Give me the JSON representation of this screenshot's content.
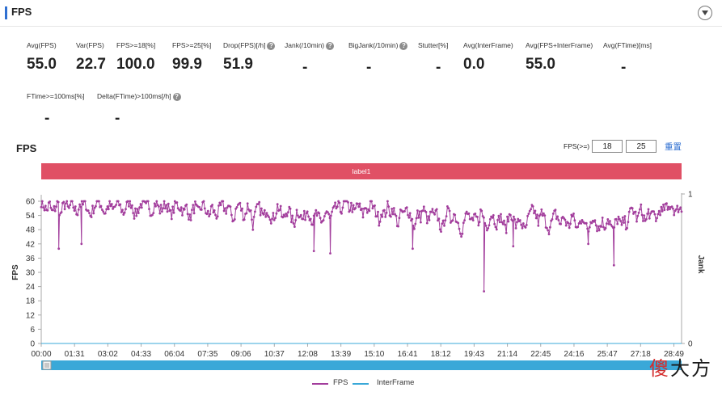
{
  "panel": {
    "title": "FPS"
  },
  "metrics_row1": [
    {
      "label": "Avg(FPS)",
      "value": "55.0",
      "help": false
    },
    {
      "label": "Var(FPS)",
      "value": "22.7",
      "help": false
    },
    {
      "label": "FPS>=18[%]",
      "value": "100.0",
      "help": false
    },
    {
      "label": "FPS>=25[%]",
      "value": "99.9",
      "help": false
    },
    {
      "label": "Drop(FPS)[/h]",
      "value": "51.9",
      "help": true
    },
    {
      "label": "Jank(/10min)",
      "value": "-",
      "help": true
    },
    {
      "label": "BigJank(/10min)",
      "value": "-",
      "help": true
    },
    {
      "label": "Stutter[%]",
      "value": "-",
      "help": false
    },
    {
      "label": "Avg(InterFrame)",
      "value": "0.0",
      "help": false
    },
    {
      "label": "Avg(FPS+InterFrame)",
      "value": "55.0",
      "help": false
    },
    {
      "label": "Avg(FTime)[ms]",
      "value": "-",
      "help": false
    }
  ],
  "metrics_row2": [
    {
      "label": "FTime>=100ms[%]",
      "value": "-",
      "help": false
    },
    {
      "label": "Delta(FTime)>100ms[/h]",
      "value": "-",
      "help": true
    }
  ],
  "chart_controls": {
    "threshold_label": "FPS(>=)",
    "threshold_low": "18",
    "threshold_high": "25",
    "reset_label": "重置"
  },
  "label_bar": "label1",
  "legend": [
    {
      "name": "FPS",
      "color": "#a23d9c"
    },
    {
      "name": "InterFrame",
      "color": "#3aa8d8"
    }
  ],
  "watermark": {
    "first": "傻",
    "rest": "大方"
  },
  "chart_data": {
    "type": "line",
    "title": "FPS",
    "xlabel": "",
    "ylabel": "FPS",
    "ylabel_right": "Jank",
    "x_ticks": [
      "00:00",
      "01:31",
      "03:02",
      "04:33",
      "06:04",
      "07:35",
      "09:06",
      "10:37",
      "12:08",
      "13:39",
      "15:10",
      "16:41",
      "18:12",
      "19:43",
      "21:14",
      "22:45",
      "24:16",
      "25:47",
      "27:18",
      "28:49"
    ],
    "y_ticks": [
      0,
      6,
      12,
      18,
      24,
      30,
      36,
      42,
      48,
      54,
      60
    ],
    "y2_ticks": [
      0,
      1
    ],
    "ylim": [
      0,
      60
    ],
    "y2lim": [
      0,
      1
    ],
    "duration_seconds": 1750,
    "grid": false,
    "legend_position": "bottom",
    "series": [
      {
        "name": "FPS",
        "color": "#a23d9c",
        "values": [
          60,
          58,
          56,
          59,
          55,
          57,
          60,
          54,
          58,
          59,
          56,
          60,
          57,
          55,
          59,
          58,
          60,
          56,
          54,
          57,
          59,
          60,
          58,
          55,
          57,
          59,
          56,
          58,
          60,
          57,
          55,
          58,
          60,
          59,
          54,
          56,
          58,
          60,
          57,
          59,
          55,
          58,
          60,
          56,
          57,
          59,
          58,
          54,
          56,
          59,
          58,
          57,
          55,
          59,
          52,
          56,
          58,
          55,
          57,
          59,
          56,
          53,
          58,
          55,
          54,
          57,
          59,
          56,
          58,
          55,
          52,
          57,
          59,
          56,
          53,
          58,
          57,
          50,
          55,
          58,
          56,
          53,
          57,
          55,
          52,
          54,
          58,
          56,
          52,
          55,
          57,
          53,
          50,
          56,
          55,
          52,
          54,
          57,
          53,
          51,
          55,
          53,
          50,
          54,
          56,
          52,
          55,
          57,
          58,
          56,
          59,
          60,
          57,
          58,
          55,
          59,
          57,
          54,
          58,
          56,
          59,
          57,
          55,
          52,
          56,
          54,
          58,
          55,
          57,
          53,
          50,
          56,
          54,
          57,
          55,
          52,
          49,
          55,
          53,
          57,
          54,
          51,
          56,
          53,
          55,
          50,
          48,
          54,
          56,
          52,
          55,
          53,
          50,
          47,
          52,
          55,
          53,
          50,
          54,
          51,
          56,
          53,
          49,
          52,
          55,
          52,
          50,
          54,
          51,
          48,
          53,
          55,
          52,
          49,
          53,
          50,
          47,
          52,
          55,
          57,
          54,
          51,
          55,
          53,
          50,
          48,
          52,
          55,
          53,
          50,
          54,
          51,
          49,
          54,
          52,
          48,
          51,
          54,
          50,
          47,
          52,
          54,
          50,
          48,
          52,
          49,
          53,
          51,
          47,
          51,
          53,
          49,
          52,
          50,
          54,
          57,
          55,
          52,
          57,
          54,
          51,
          56,
          53,
          55,
          52,
          57,
          55,
          58,
          56,
          59,
          57,
          55,
          58,
          56
        ]
      },
      {
        "name": "InterFrame",
        "color": "#3aa8d8",
        "values": [
          0,
          0,
          0,
          0,
          0,
          0,
          0,
          0,
          0,
          0
        ]
      }
    ],
    "notable_dips": [
      {
        "time": "00:48",
        "fps": 40
      },
      {
        "time": "01:50",
        "fps": 42
      },
      {
        "time": "12:25",
        "fps": 39
      },
      {
        "time": "13:10",
        "fps": 38
      },
      {
        "time": "16:55",
        "fps": 40
      },
      {
        "time": "20:10",
        "fps": 22
      },
      {
        "time": "21:30",
        "fps": 41
      },
      {
        "time": "24:55",
        "fps": 42
      },
      {
        "time": "26:05",
        "fps": 33
      }
    ]
  }
}
